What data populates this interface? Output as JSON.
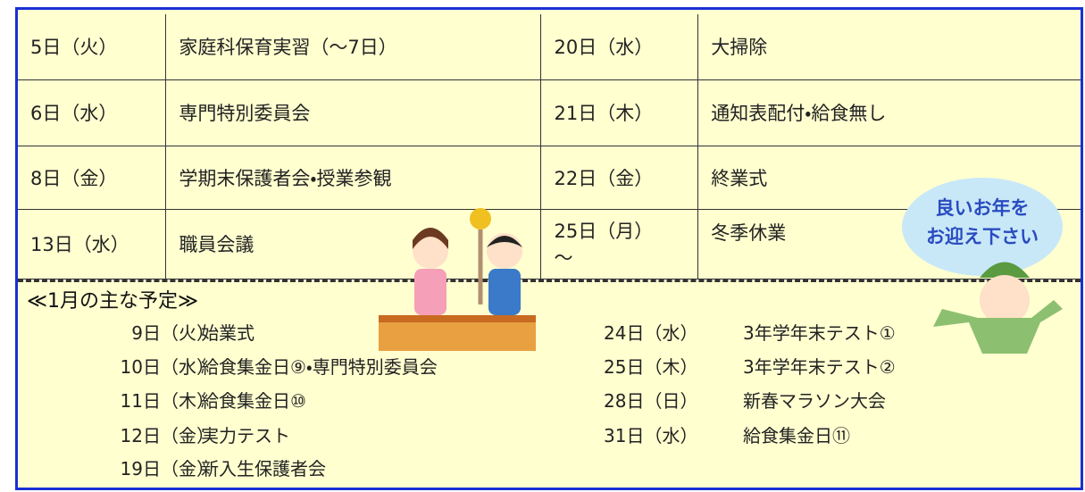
{
  "table": {
    "rows": [
      [
        "5日（火）",
        "家庭科保育実習（～7日）",
        "20日（水）",
        "大掃除"
      ],
      [
        "6日（水）",
        "専門特別委員会",
        "21日（木）",
        "通知表配付・給食無し"
      ],
      [
        "8日（金）",
        "学期末保護者会・授業参観",
        "22日（金）",
        "終業式"
      ],
      [
        "13日（水）",
        "職員会議",
        "25日（月）\n～",
        "冬季休業"
      ]
    ]
  },
  "january": {
    "title": "≪1月の主な予定≫",
    "left": [
      [
        "9日（火）",
        "始業式"
      ],
      [
        "10日（水）",
        "給食集金日⑨・専門特別委員会"
      ],
      [
        "11日（木）",
        "給食集金日⑩"
      ],
      [
        "12日（金）",
        "実力テスト"
      ],
      [
        "19日（金）",
        "新入生保護者会"
      ]
    ],
    "right": [
      [
        "24日（水）",
        "3年学年末テスト①"
      ],
      [
        "25日（木）",
        "3年学年末テスト②"
      ],
      [
        "28日（日）",
        "新春マラソン大会"
      ],
      [
        "31日（水）",
        "給食集金日⑪"
      ]
    ]
  },
  "bubble": {
    "lines": [
      "良いお年を",
      "お迎え下さい"
    ]
  }
}
